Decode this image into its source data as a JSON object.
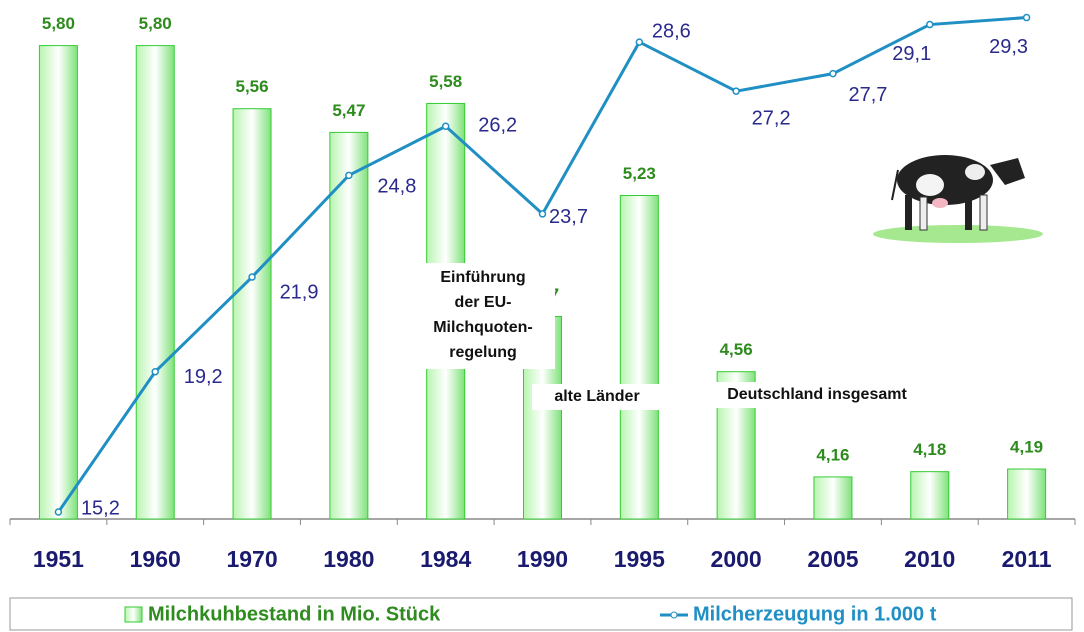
{
  "chart_data": {
    "type": "bar-line",
    "categories": [
      "1951",
      "1960",
      "1970",
      "1980",
      "1984",
      "1990",
      "1995",
      "2000",
      "2005",
      "2010",
      "2011"
    ],
    "series": [
      {
        "name": "Milchkuhbestand in Mio. Stück",
        "type": "bar",
        "color": "#33cc33",
        "axis": "y",
        "values": [
          5.8,
          5.8,
          5.56,
          5.47,
          5.58,
          4.77,
          5.23,
          4.56,
          4.16,
          4.18,
          4.19
        ],
        "value_labels": [
          "5,80",
          "5,80",
          "5,56",
          "5,47",
          "5,58",
          "4,77",
          "5,23",
          "4,56",
          "4,16",
          "4,18",
          "4,19"
        ]
      },
      {
        "name": "Milcherzeugung in 1.000 t",
        "type": "line",
        "color": "#1f8fc4",
        "axis": "y2",
        "values": [
          15.2,
          19.2,
          21.9,
          24.8,
          26.2,
          23.7,
          28.6,
          27.2,
          27.7,
          29.1,
          29.3
        ],
        "value_labels": [
          "15,2",
          "19,2",
          "21,9",
          "24,8",
          "26,2",
          "23,7",
          "28,6",
          "27,2",
          "27,7",
          "29,1",
          "29,3"
        ]
      }
    ],
    "ylim": [
      4,
      6
    ],
    "y2lim": [
      15,
      30
    ],
    "annotations": [
      [
        "Einführung",
        "der EU-",
        "Milchquoten-",
        "regelung"
      ],
      [
        "alte Länder"
      ],
      [
        "Deutschland  insgesamt"
      ]
    ],
    "legend": "bottom"
  }
}
